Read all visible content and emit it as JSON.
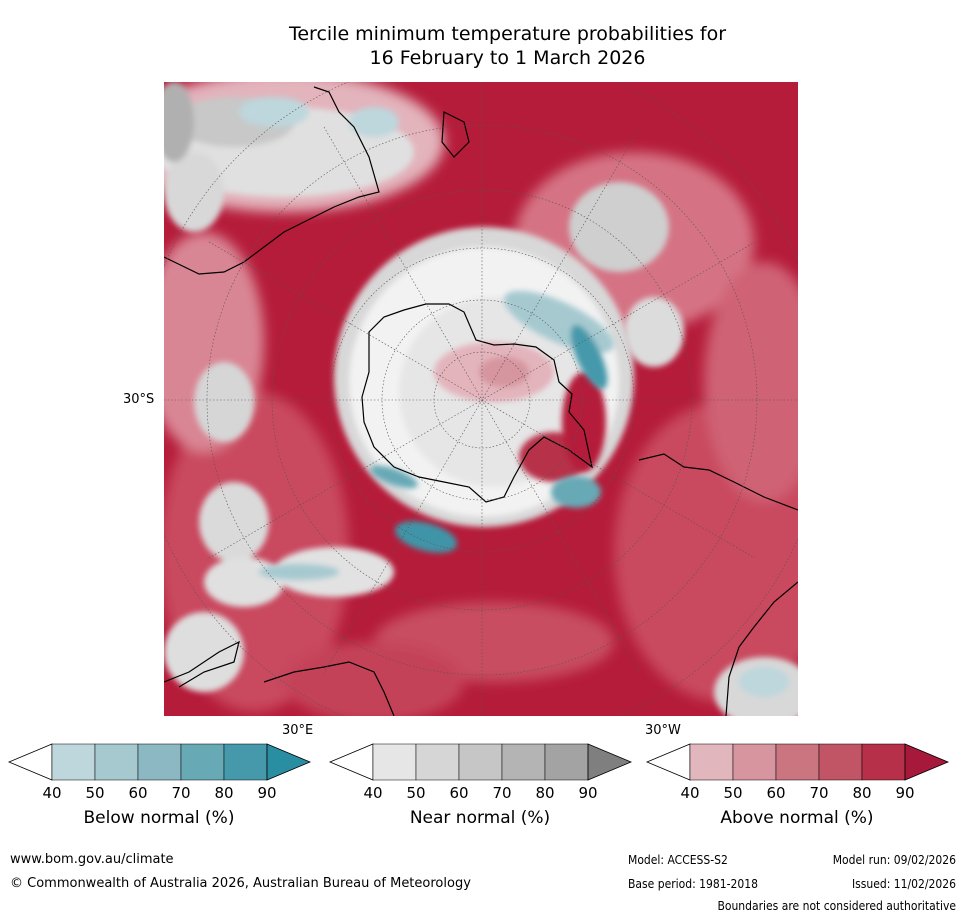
{
  "title": {
    "line1": "Tercile minimum temperature probabilities for",
    "line2": "16 February to 1 March 2026"
  },
  "map": {
    "projection": "south-polar-stereographic",
    "labels": {
      "lat_30s": "30°S",
      "lon_30e": "30°E",
      "lon_30w": "30°W"
    },
    "colors": {
      "land_outline": "#000000",
      "graticule": "#555555"
    }
  },
  "colorbars": [
    {
      "id": "below",
      "title": "Below normal (%)",
      "ticks": [
        "40",
        "50",
        "60",
        "70",
        "80",
        "90"
      ],
      "colors": [
        "#ffffff",
        "#bdd7dd",
        "#a6c9d0",
        "#8cb8c4",
        "#68a9b6",
        "#4599ab",
        "#2a8ea3"
      ]
    },
    {
      "id": "near",
      "title": "Near normal (%)",
      "ticks": [
        "40",
        "50",
        "60",
        "70",
        "80",
        "90"
      ],
      "colors": [
        "#ffffff",
        "#e6e6e6",
        "#d6d6d6",
        "#c6c6c6",
        "#b4b4b4",
        "#a3a3a3",
        "#7f7f7f"
      ]
    },
    {
      "id": "above",
      "title": "Above normal (%)",
      "ticks": [
        "40",
        "50",
        "60",
        "70",
        "80",
        "90"
      ],
      "colors": [
        "#ffffff",
        "#e2b6bd",
        "#d6959f",
        "#cb7580",
        "#c25565",
        "#b73049",
        "#a7193b"
      ]
    }
  ],
  "footer": {
    "url": "www.bom.gov.au/climate",
    "copyright": "© Commonwealth of Australia 2026, Australian Bureau of Meteorology",
    "model": "Model: ACCESS-S2",
    "model_run": "Model run: 09/02/2026",
    "base_period": "Base period: 1981-2018",
    "issued": "Issued: 11/02/2026",
    "disclaimer": "Boundaries are not considered authoritative"
  }
}
